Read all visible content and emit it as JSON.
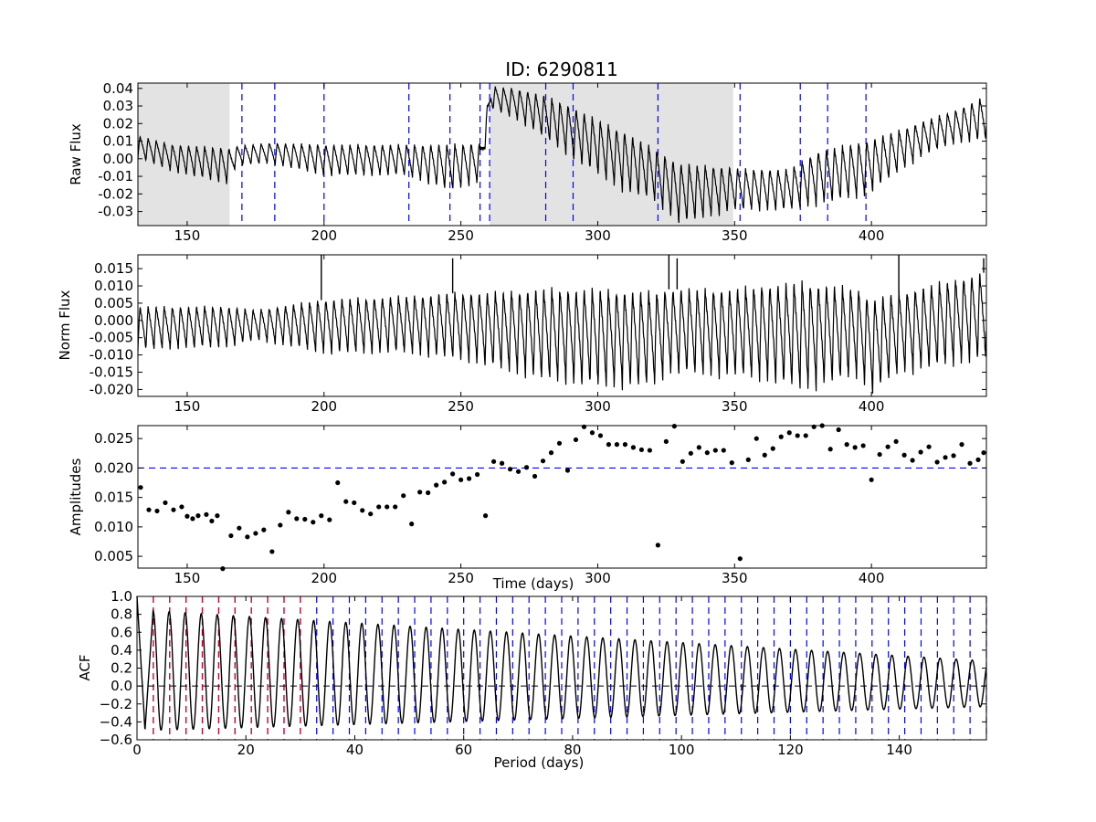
{
  "figure": {
    "title": "ID: 6290811"
  },
  "chart_data": [
    {
      "type": "line",
      "panel": "raw",
      "xlabel": "",
      "ylabel": "Raw Flux",
      "xlim": [
        132,
        442
      ],
      "ylim": [
        -0.038,
        0.043
      ],
      "xticks": [
        "150",
        "200",
        "250",
        "300",
        "350",
        "400"
      ],
      "yticks": [
        "-0.03",
        "-0.02",
        "-0.01",
        "0.00",
        "0.01",
        "0.02",
        "0.03",
        "0.04"
      ],
      "shaded_regions": [
        [
          132,
          165.5
        ],
        [
          260.5,
          349.5
        ]
      ],
      "quarter_boundaries": [
        170,
        182,
        200,
        231,
        246,
        257,
        260.5,
        281,
        291,
        322,
        352,
        374,
        384,
        398
      ],
      "series": [
        {
          "color": "#000000",
          "style": "oscillating light curve, period ~3 days",
          "envelope_x": [
            132,
            145,
            165,
            168,
            180,
            200,
            230,
            246,
            257,
            261,
            270,
            280,
            290,
            300,
            310,
            320,
            330,
            350,
            352,
            370,
            380,
            398,
            410,
            420,
            430,
            442
          ],
          "envelope_high": [
            0.013,
            0.008,
            0.006,
            0.007,
            0.009,
            0.008,
            0.008,
            0.008,
            0.009,
            0.041,
            0.04,
            0.036,
            0.03,
            0.022,
            0.015,
            0.006,
            -0.003,
            -0.005,
            -0.006,
            -0.006,
            0.004,
            0.01,
            0.016,
            0.022,
            0.027,
            0.036
          ],
          "envelope_low": [
            0.0,
            -0.008,
            -0.015,
            -0.004,
            -0.003,
            -0.01,
            -0.01,
            -0.019,
            -0.014,
            0.028,
            0.022,
            0.012,
            0.0,
            -0.01,
            -0.02,
            -0.024,
            -0.038,
            -0.03,
            -0.03,
            -0.03,
            -0.027,
            -0.022,
            -0.008,
            0.002,
            0.008,
            0.01
          ]
        }
      ]
    },
    {
      "type": "line",
      "panel": "norm",
      "xlabel": "",
      "ylabel": "Norm Flux",
      "xlim": [
        132,
        442
      ],
      "ylim": [
        -0.022,
        0.019
      ],
      "xticks": [
        "150",
        "200",
        "250",
        "300",
        "350",
        "400"
      ],
      "yticks": [
        "-0.020",
        "-0.015",
        "-0.010",
        "-0.005",
        "0.000",
        "0.005",
        "0.010",
        "0.015"
      ],
      "series": [
        {
          "color": "#000000",
          "style": "normalized oscillating light curve, period ~3 days",
          "envelope_x": [
            132,
            165,
            175,
            200,
            230,
            250,
            260,
            280,
            300,
            320,
            326,
            350,
            360,
            375,
            395,
            400,
            410,
            442
          ],
          "envelope_high": [
            0.004,
            0.004,
            0.003,
            0.006,
            0.007,
            0.008,
            0.008,
            0.009,
            0.009,
            0.008,
            0.009,
            0.009,
            0.01,
            0.011,
            0.009,
            0.006,
            0.008,
            0.014
          ],
          "envelope_low": [
            -0.009,
            -0.008,
            -0.006,
            -0.01,
            -0.01,
            -0.012,
            -0.014,
            -0.018,
            -0.02,
            -0.02,
            -0.016,
            -0.017,
            -0.018,
            -0.021,
            -0.017,
            -0.022,
            -0.016,
            -0.012
          ],
          "spikes": [
            [
              199,
              0.019
            ],
            [
              247,
              0.018
            ],
            [
              326,
              0.019
            ],
            [
              329,
              0.018
            ],
            [
              410,
              0.019
            ],
            [
              441,
              0.018
            ]
          ]
        }
      ]
    },
    {
      "type": "scatter",
      "panel": "amplitudes",
      "xlabel": "Time (days)",
      "ylabel": "Amplitudes",
      "xlim": [
        132,
        442
      ],
      "ylim": [
        0.003,
        0.0272
      ],
      "xticks": [
        "150",
        "200",
        "250",
        "300",
        "350",
        "400"
      ],
      "yticks": [
        "0.005",
        "0.010",
        "0.015",
        "0.020",
        "0.025"
      ],
      "threshold": 0.02,
      "x": [
        133,
        136,
        139,
        142,
        145,
        148,
        150,
        152,
        154,
        157,
        159,
        161,
        163,
        166,
        169,
        172,
        175,
        178,
        181,
        184,
        187,
        190,
        193,
        196,
        199,
        202,
        205,
        208,
        211,
        214,
        217,
        220,
        223,
        226,
        229,
        232,
        235,
        238,
        241,
        244,
        247,
        250,
        253,
        256,
        259,
        262,
        265,
        268,
        271,
        274,
        277,
        280,
        283,
        286,
        289,
        292,
        295,
        298,
        301,
        304,
        307,
        310,
        313,
        316,
        319,
        322,
        325,
        328,
        331,
        334,
        337,
        340,
        343,
        346,
        349,
        352,
        355,
        358,
        361,
        364,
        367,
        370,
        373,
        376,
        379,
        382,
        385,
        388,
        391,
        394,
        397,
        400,
        403,
        406,
        409,
        412,
        415,
        418,
        421,
        424,
        427,
        430,
        433,
        436,
        439,
        441
      ],
      "y": [
        0.0167,
        0.0129,
        0.0127,
        0.0141,
        0.0129,
        0.0134,
        0.0118,
        0.0114,
        0.0119,
        0.0121,
        0.011,
        0.0119,
        0.0029,
        0.0085,
        0.0098,
        0.0083,
        0.0089,
        0.0095,
        0.0058,
        0.0103,
        0.0125,
        0.0114,
        0.0113,
        0.0108,
        0.0119,
        0.0112,
        0.0175,
        0.0143,
        0.0141,
        0.0128,
        0.0122,
        0.0134,
        0.0134,
        0.0134,
        0.0153,
        0.0105,
        0.0159,
        0.0158,
        0.0171,
        0.0176,
        0.019,
        0.018,
        0.0182,
        0.0189,
        0.0119,
        0.0211,
        0.0208,
        0.0198,
        0.0194,
        0.0201,
        0.0186,
        0.0212,
        0.0226,
        0.0242,
        0.0196,
        0.0248,
        0.027,
        0.026,
        0.0255,
        0.024,
        0.024,
        0.024,
        0.0235,
        0.0231,
        0.023,
        0.0069,
        0.0245,
        0.0271,
        0.0211,
        0.0225,
        0.0235,
        0.0226,
        0.023,
        0.023,
        0.0209,
        0.0046,
        0.0214,
        0.025,
        0.0222,
        0.0233,
        0.0253,
        0.026,
        0.0255,
        0.0255,
        0.027,
        0.0272,
        0.0232,
        0.0265,
        0.024,
        0.0235,
        0.0238,
        0.018,
        0.0223,
        0.0236,
        0.0245,
        0.0222,
        0.0213,
        0.0227,
        0.0236,
        0.021,
        0.0218,
        0.0221,
        0.024,
        0.0208,
        0.0214,
        0.0226
      ]
    },
    {
      "type": "line",
      "panel": "acf",
      "xlabel": "Period (days)",
      "ylabel": "ACF",
      "xlim": [
        0,
        156
      ],
      "ylim": [
        -0.6,
        1.0
      ],
      "xticks": [
        "0",
        "20",
        "40",
        "60",
        "80",
        "100",
        "120",
        "140"
      ],
      "yticks": [
        "−0.6",
        "−0.4",
        "−0.2",
        "0.0",
        "0.2",
        "0.4",
        "0.6",
        "0.8",
        "1.0"
      ],
      "zero_line": 0.0,
      "period": 2.95,
      "peak_start": 0.85,
      "peak_end": 0.28,
      "trough_start": -0.5,
      "trough_end": -0.23,
      "red_markers": [
        3,
        6,
        9,
        12,
        15,
        18,
        21,
        24,
        27,
        30
      ],
      "blue_markers": [
        33,
        36,
        39,
        42,
        45,
        48,
        51,
        54,
        57,
        60,
        63,
        66,
        69,
        72,
        75,
        78,
        81,
        84,
        87,
        90,
        93,
        96,
        99,
        102,
        105,
        108,
        111,
        114,
        117,
        120,
        123,
        126,
        129,
        132,
        135,
        138,
        141,
        144,
        147,
        150,
        153,
        156
      ]
    }
  ],
  "colors": {
    "line": "#000000",
    "marker_blue": "#0000ff",
    "marker_red": "#cc0033",
    "shade": "#e3e3e3"
  }
}
